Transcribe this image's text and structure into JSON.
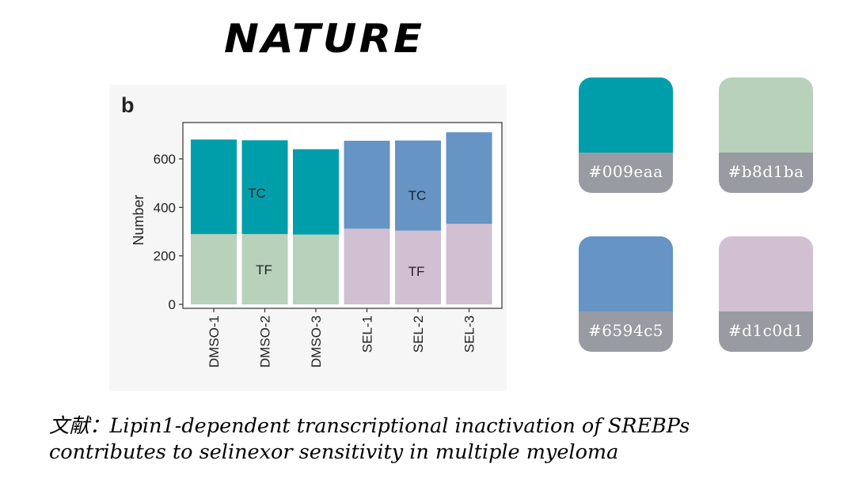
{
  "brand": {
    "name": "NATURE"
  },
  "figure": {
    "panel_label": "b"
  },
  "chart_data": {
    "type": "bar",
    "stacked": true,
    "categories": [
      "DMSO-1",
      "DMSO-2",
      "DMSO-3",
      "SEL-1",
      "SEL-2",
      "SEL-3"
    ],
    "series": [
      {
        "name": "TF",
        "values": [
          290,
          290,
          288,
          312,
          304,
          332
        ]
      },
      {
        "name": "TC",
        "values": [
          390,
          387,
          352,
          363,
          372,
          378
        ]
      }
    ],
    "colors": {
      "TF": [
        "#b8d1ba",
        "#b8d1ba",
        "#b8d1ba",
        "#d1c0d1",
        "#d1c0d1",
        "#d1c0d1"
      ],
      "TC": [
        "#009eaa",
        "#009eaa",
        "#009eaa",
        "#6594c5",
        "#6594c5",
        "#6594c5"
      ]
    },
    "annotations": [
      {
        "text": "TC",
        "group": "DMSO"
      },
      {
        "text": "TF",
        "group": "DMSO"
      },
      {
        "text": "TC",
        "group": "SEL"
      },
      {
        "text": "TF",
        "group": "SEL"
      }
    ],
    "title": "",
    "xlabel": "",
    "ylabel": "Number",
    "ylim": [
      0,
      740
    ],
    "yticks": [
      0,
      200,
      400,
      600
    ],
    "grid": false,
    "legend": "none"
  },
  "palette": [
    {
      "hex": "#009eaa",
      "label": "#009eaa"
    },
    {
      "hex": "#b8d1ba",
      "label": "#b8d1ba"
    },
    {
      "hex": "#6594c5",
      "label": "#6594c5"
    },
    {
      "hex": "#d1c0d1",
      "label": "#d1c0d1"
    }
  ],
  "citation": {
    "line1": "文献：Lipin1-dependent transcriptional inactivation of SREBPs",
    "line2": "contributes to selinexor sensitivity in multiple myeloma"
  }
}
